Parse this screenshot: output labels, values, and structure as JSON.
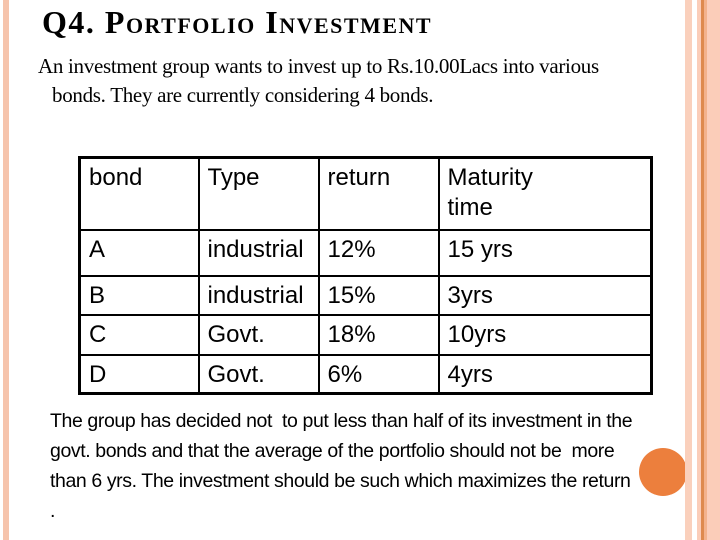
{
  "slide": {
    "title": "Q4. Portfolio Investment",
    "intro_lines": [
      "An investment group wants to invest up to Rs.10.00Lacs into various",
      "bonds. They are currently considering 4 bonds."
    ],
    "table": {
      "headers": [
        "bond",
        "Type",
        "return",
        "Maturity time"
      ],
      "rows": [
        {
          "bond": "A",
          "type": "industrial",
          "return": "12%",
          "maturity": "15 yrs"
        },
        {
          "bond": "B",
          "type": "industrial",
          "return": "15%",
          "maturity": "3yrs"
        },
        {
          "bond": "C",
          "type": "Govt.",
          "return": "18%",
          "maturity": "10yrs"
        },
        {
          "bond": "D",
          "type": "Govt.",
          "return": "6%",
          "maturity": "4yrs"
        }
      ]
    },
    "note_lines": [
      "The group has decided not  to put less than half of its investment in the",
      "govt. bonds and that the average of the portfolio should not be  more",
      "than 6 yrs. The investment should be such which maximizes the return",
      "."
    ],
    "colors": {
      "accent_circle": "#ec7f3d",
      "stripe_peach": "#fbcdb9",
      "stripe_dark_line": "#de8a4e",
      "table_border": "#000000",
      "text": "#000000"
    }
  }
}
